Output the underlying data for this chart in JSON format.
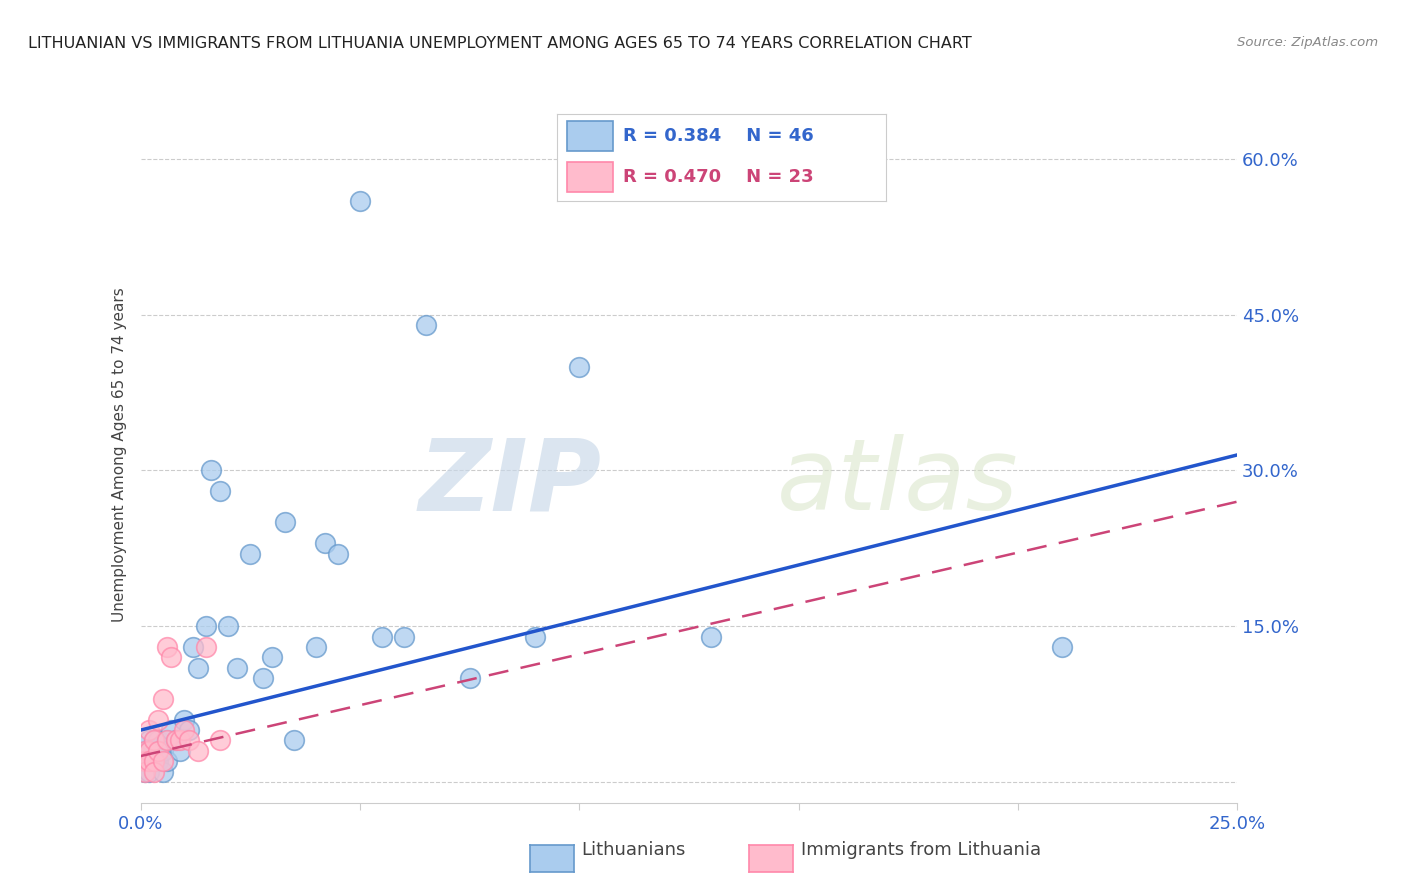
{
  "title": "LITHUANIAN VS IMMIGRANTS FROM LITHUANIA UNEMPLOYMENT AMONG AGES 65 TO 74 YEARS CORRELATION CHART",
  "source": "Source: ZipAtlas.com",
  "ylabel": "Unemployment Among Ages 65 to 74 years",
  "xlim": [
    0.0,
    0.25
  ],
  "ylim": [
    -0.02,
    0.65
  ],
  "xticks": [
    0.0,
    0.05,
    0.1,
    0.15,
    0.2,
    0.25
  ],
  "xticklabels": [
    "0.0%",
    "",
    "",
    "",
    "",
    "25.0%"
  ],
  "yticks": [
    0.0,
    0.15,
    0.3,
    0.45,
    0.6
  ],
  "yticklabels": [
    "",
    "15.0%",
    "30.0%",
    "45.0%",
    "60.0%"
  ],
  "grid_color": "#cccccc",
  "background_color": "#ffffff",
  "watermark_zip": "ZIP",
  "watermark_atlas": "atlas",
  "legend_r1": "R = 0.384",
  "legend_n1": "N = 46",
  "legend_r2": "R = 0.470",
  "legend_n2": "N = 23",
  "blue_face": "#aaccee",
  "blue_edge": "#6699cc",
  "pink_face": "#ffbbcc",
  "pink_edge": "#ff88aa",
  "blue_line_color": "#2255cc",
  "pink_line_color": "#cc4477",
  "lithuanians_x": [
    0.001,
    0.001,
    0.001,
    0.002,
    0.002,
    0.002,
    0.002,
    0.003,
    0.003,
    0.003,
    0.004,
    0.004,
    0.004,
    0.005,
    0.005,
    0.006,
    0.006,
    0.007,
    0.008,
    0.009,
    0.01,
    0.011,
    0.012,
    0.013,
    0.015,
    0.016,
    0.018,
    0.02,
    0.022,
    0.025,
    0.028,
    0.03,
    0.033,
    0.035,
    0.04,
    0.042,
    0.045,
    0.05,
    0.055,
    0.06,
    0.065,
    0.075,
    0.09,
    0.1,
    0.13,
    0.21
  ],
  "lithuanians_y": [
    0.03,
    0.02,
    0.01,
    0.04,
    0.02,
    0.01,
    0.03,
    0.02,
    0.04,
    0.02,
    0.03,
    0.02,
    0.04,
    0.03,
    0.01,
    0.04,
    0.02,
    0.05,
    0.04,
    0.03,
    0.06,
    0.05,
    0.13,
    0.11,
    0.15,
    0.3,
    0.28,
    0.15,
    0.11,
    0.22,
    0.1,
    0.12,
    0.25,
    0.04,
    0.13,
    0.23,
    0.22,
    0.56,
    0.14,
    0.14,
    0.44,
    0.1,
    0.14,
    0.4,
    0.14,
    0.13
  ],
  "immigrants_x": [
    0.001,
    0.001,
    0.001,
    0.002,
    0.002,
    0.002,
    0.003,
    0.003,
    0.003,
    0.004,
    0.004,
    0.005,
    0.005,
    0.006,
    0.006,
    0.007,
    0.008,
    0.009,
    0.01,
    0.011,
    0.013,
    0.015,
    0.018
  ],
  "immigrants_y": [
    0.03,
    0.02,
    0.01,
    0.05,
    0.03,
    0.02,
    0.04,
    0.02,
    0.01,
    0.06,
    0.03,
    0.08,
    0.02,
    0.13,
    0.04,
    0.12,
    0.04,
    0.04,
    0.05,
    0.04,
    0.03,
    0.13,
    0.04
  ],
  "blue_trend_x0": 0.0,
  "blue_trend_y0": 0.05,
  "blue_trend_x1": 0.25,
  "blue_trend_y1": 0.315,
  "pink_trend_x0": 0.0,
  "pink_trend_y0": 0.025,
  "pink_trend_x1": 0.25,
  "pink_trend_y1": 0.27
}
